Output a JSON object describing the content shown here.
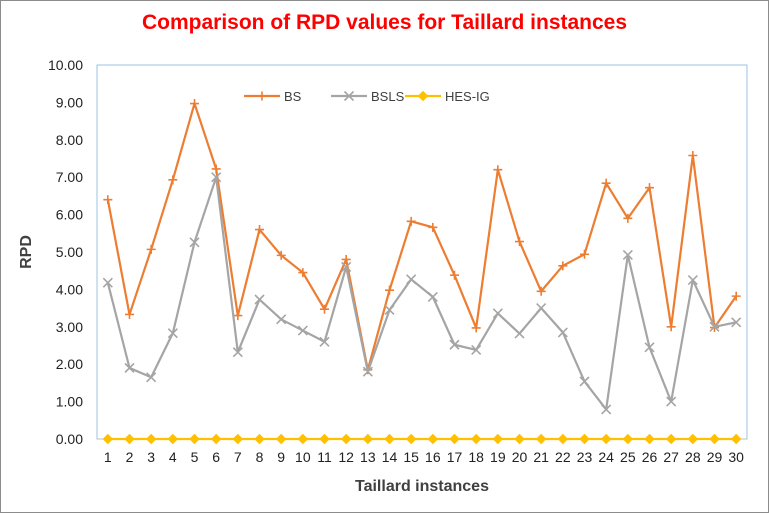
{
  "chart_data": {
    "type": "line",
    "title": "Comparison of RPD values for Taillard instances",
    "xlabel": "Taillard instances",
    "ylabel": "RPD",
    "ylim": [
      0,
      10
    ],
    "y_ticks": [
      "0.00",
      "1.00",
      "2.00",
      "3.00",
      "4.00",
      "5.00",
      "6.00",
      "7.00",
      "8.00",
      "9.00",
      "10.00"
    ],
    "x": [
      1,
      2,
      3,
      4,
      5,
      6,
      7,
      8,
      9,
      10,
      11,
      12,
      13,
      14,
      15,
      16,
      17,
      18,
      19,
      20,
      21,
      22,
      23,
      24,
      25,
      26,
      27,
      28,
      29,
      30
    ],
    "legend_position": "top-center",
    "grid": false,
    "series": [
      {
        "name": "BS",
        "color": "#ed7d31",
        "marker": "plus",
        "values": [
          6.4,
          3.33,
          5.07,
          6.93,
          8.97,
          7.22,
          3.3,
          5.6,
          4.91,
          4.45,
          3.47,
          4.8,
          1.85,
          3.98,
          5.82,
          5.66,
          4.38,
          2.97,
          7.2,
          5.28,
          3.95,
          4.63,
          4.94,
          6.84,
          5.9,
          6.72,
          3.0,
          7.58,
          2.98,
          3.82
        ]
      },
      {
        "name": "BSLS",
        "color": "#a5a5a5",
        "marker": "cross",
        "values": [
          4.18,
          1.9,
          1.65,
          2.83,
          5.26,
          7.0,
          2.32,
          3.73,
          3.2,
          2.9,
          2.6,
          4.6,
          1.8,
          3.45,
          4.27,
          3.8,
          2.52,
          2.38,
          3.36,
          2.82,
          3.5,
          2.85,
          1.54,
          0.79,
          4.92,
          2.45,
          1.0,
          4.25,
          3.0,
          3.12
        ]
      },
      {
        "name": "HES-IG",
        "color": "#ffc000",
        "marker": "diamond",
        "values": [
          0,
          0,
          0,
          0,
          0,
          0,
          0,
          0,
          0,
          0,
          0,
          0,
          0,
          0,
          0,
          0,
          0,
          0,
          0,
          0,
          0,
          0,
          0,
          0,
          0,
          0,
          0,
          0,
          0,
          0
        ]
      }
    ]
  }
}
